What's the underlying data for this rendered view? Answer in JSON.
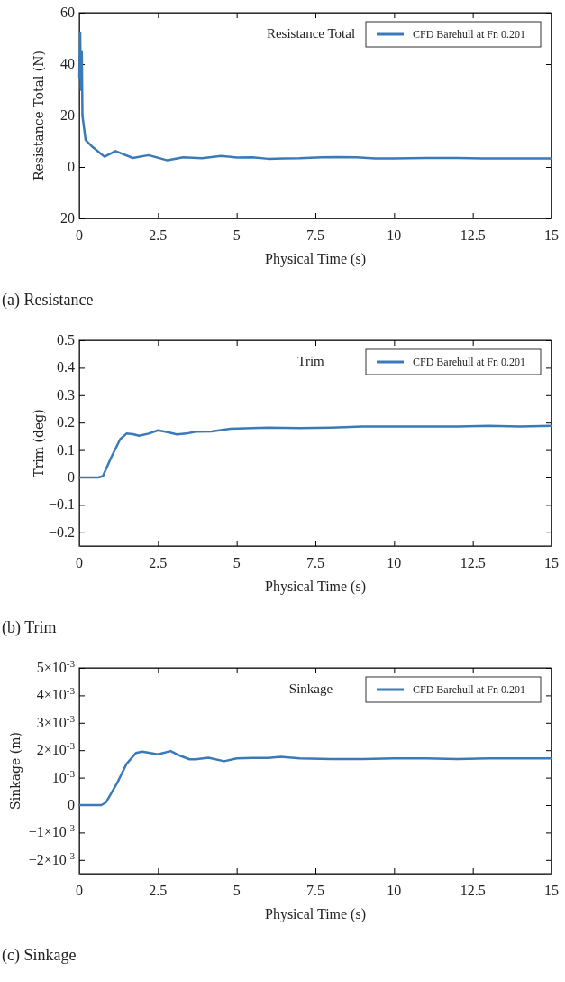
{
  "chart_data": [
    {
      "type": "line",
      "title": "Resistance Total",
      "xlabel": "Physical Time (s)",
      "ylabel": "Resistance Total (N)",
      "annotations": [
        "(a) Resistance"
      ],
      "legend": "top right",
      "grid": false,
      "xlim": [
        0,
        15
      ],
      "xticks": [
        0,
        2.5,
        5,
        7.5,
        10,
        12.5,
        15
      ],
      "ylim": [
        -20,
        60
      ],
      "yticks": [
        -20,
        0,
        20,
        40,
        60
      ],
      "series": [
        {
          "name": "CFD Barehull at Fn 0.201",
          "color": "#3a7ab8",
          "x": [
            0,
            0.03,
            0.05,
            0.08,
            0.1,
            0.2,
            0.4,
            0.5,
            0.8,
            1.15,
            1.7,
            2.2,
            2.8,
            3.3,
            3.9,
            4.5,
            5,
            5.5,
            6,
            6.5,
            7,
            7.7,
            8.2,
            8.8,
            9.4,
            10,
            11,
            12,
            12.8,
            15
          ],
          "values": [
            35,
            52,
            30,
            45,
            20,
            10.5,
            8,
            7,
            4,
            6.2,
            3.5,
            4.6,
            2.6,
            3.8,
            3.4,
            4.3,
            3.7,
            3.8,
            3.2,
            3.3,
            3.4,
            3.8,
            3.9,
            3.8,
            3.3,
            3.3,
            3.5,
            3.5,
            3.3,
            3.3
          ]
        }
      ]
    },
    {
      "type": "line",
      "title": "Trim",
      "xlabel": "Physical Time (s)",
      "ylabel": "Trim (deg)",
      "annotations": [
        "(b) Trim"
      ],
      "legend": "top right",
      "grid": false,
      "xlim": [
        0,
        15
      ],
      "xticks": [
        0,
        2.5,
        5,
        7.5,
        10,
        12.5,
        15
      ],
      "ylim": [
        -0.25,
        0.5
      ],
      "yticks": [
        -0.2,
        -0.1,
        0,
        0.1,
        0.2,
        0.3,
        0.4,
        0.5
      ],
      "series": [
        {
          "name": "CFD Barehull at Fn 0.201",
          "color": "#3a7ab8",
          "x": [
            0,
            0.6,
            0.75,
            1.0,
            1.3,
            1.5,
            1.7,
            1.9,
            2.2,
            2.5,
            2.8,
            3.1,
            3.4,
            3.7,
            4.2,
            4.8,
            5.5,
            6,
            7,
            8,
            9,
            10,
            11,
            12,
            13,
            14,
            15
          ],
          "values": [
            0,
            0,
            0.005,
            0.07,
            0.14,
            0.16,
            0.158,
            0.152,
            0.16,
            0.172,
            0.165,
            0.157,
            0.16,
            0.167,
            0.168,
            0.178,
            0.18,
            0.182,
            0.18,
            0.182,
            0.186,
            0.186,
            0.186,
            0.186,
            0.188,
            0.186,
            0.188
          ]
        }
      ]
    },
    {
      "type": "line",
      "title": "Sinkage",
      "xlabel": "Physical Time (s)",
      "ylabel": "Sinkage (m)",
      "annotations": [
        "(c) Sinkage"
      ],
      "legend": "top right",
      "grid": false,
      "xlim": [
        0,
        15
      ],
      "xticks": [
        0,
        2.5,
        5,
        7.5,
        10,
        12.5,
        15
      ],
      "ylim": [
        -0.0025,
        0.005
      ],
      "yticks": [
        {
          "value": -0.002,
          "label": "−2×10$^{-3}$"
        },
        {
          "value": -0.001,
          "label": "−1×10$^{-3}$"
        },
        0,
        {
          "value": 0.001,
          "label": "10$^{-3}$"
        },
        {
          "value": 0.002,
          "label": "2×10$^{-3}$"
        },
        {
          "value": 0.003,
          "label": "3×10$^{-3}$"
        },
        {
          "value": 0.004,
          "label": "4×10$^{-3}$"
        },
        {
          "value": 0.005,
          "label": "5×10$^{-3}$"
        }
      ],
      "series": [
        {
          "name": "CFD Barehull at Fn 0.201",
          "color": "#3a7ab8",
          "x": [
            0,
            0.7,
            0.85,
            1.2,
            1.5,
            1.8,
            2,
            2.5,
            2.9,
            3.2,
            3.5,
            3.7,
            4.1,
            4.6,
            5,
            5.5,
            6,
            6.4,
            7,
            8,
            9,
            10,
            11,
            12,
            13,
            15
          ],
          "values": [
            0,
            0,
            0.0001,
            0.0008,
            0.0015,
            0.0019,
            0.00195,
            0.00185,
            0.00197,
            0.0018,
            0.00167,
            0.00167,
            0.00173,
            0.0016,
            0.0017,
            0.00172,
            0.00172,
            0.00176,
            0.0017,
            0.00168,
            0.00168,
            0.0017,
            0.0017,
            0.00168,
            0.0017,
            0.0017
          ]
        }
      ]
    }
  ]
}
